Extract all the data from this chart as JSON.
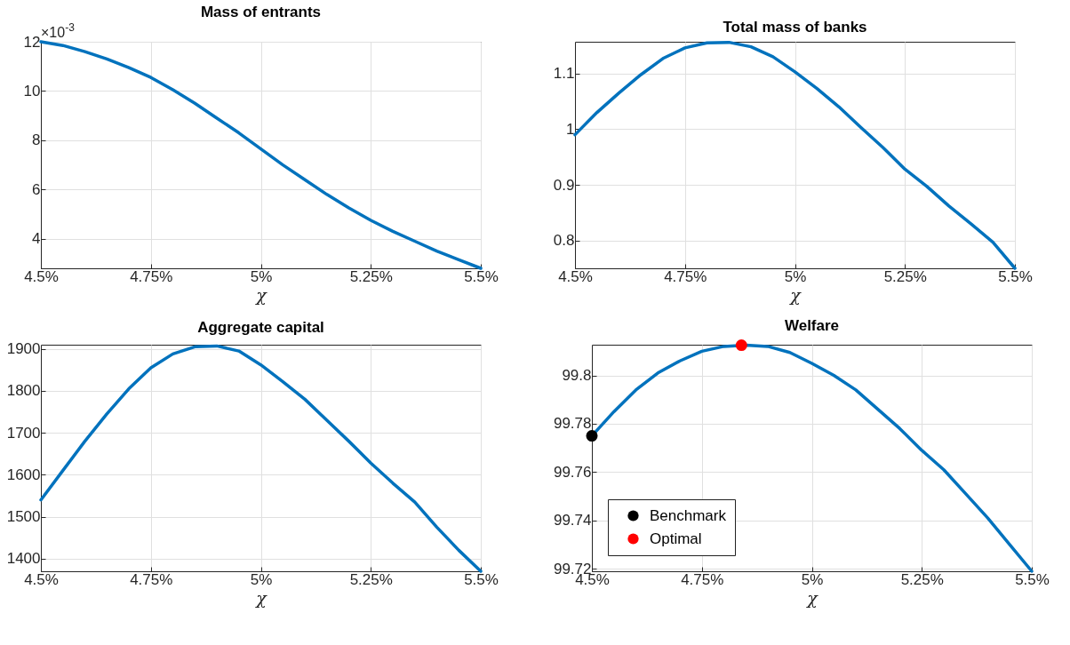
{
  "chart_data": [
    {
      "type": "line",
      "title": "Mass of entrants",
      "xlabel": "χ",
      "annotations": [
        "×10$^{-3}$"
      ],
      "grid": true,
      "marker": "none",
      "x": [
        4.5,
        4.55,
        4.6,
        4.65,
        4.7,
        4.75,
        4.8,
        4.85,
        4.9,
        4.95,
        5.0,
        5.05,
        5.1,
        5.15,
        5.2,
        5.25,
        5.3,
        5.35,
        5.4,
        5.45,
        5.5
      ],
      "series": [
        {
          "color": "#0072bd",
          "values": [
            12.0,
            11.85,
            11.6,
            11.3,
            10.95,
            10.55,
            10.05,
            9.5,
            8.9,
            8.3,
            7.65,
            7.0,
            6.4,
            5.8,
            5.25,
            4.75,
            4.3,
            3.9,
            3.5,
            3.15,
            2.8
          ]
        }
      ],
      "xlim": [
        4.5,
        5.5
      ],
      "xticks": [
        {
          "value": 4.5,
          "label": "4.5%"
        },
        {
          "value": 4.75,
          "label": "4.75%"
        },
        {
          "value": 5,
          "label": "5%"
        },
        {
          "value": 5.25,
          "label": "5.25%"
        },
        {
          "value": 5.5,
          "label": "5.5%"
        }
      ],
      "ylim": [
        2.8,
        12
      ],
      "yticks": [
        4,
        6,
        8,
        10,
        12
      ]
    },
    {
      "type": "line",
      "title": "Total mass of banks",
      "xlabel": "χ",
      "grid": true,
      "marker": "none",
      "x": [
        4.5,
        4.55,
        4.6,
        4.65,
        4.7,
        4.75,
        4.8,
        4.85,
        4.9,
        4.95,
        5.0,
        5.05,
        5.1,
        5.15,
        5.2,
        5.25,
        5.3,
        5.35,
        5.4,
        5.45,
        5.5
      ],
      "series": [
        {
          "color": "#0072bd",
          "values": [
            0.99,
            1.03,
            1.065,
            1.098,
            1.127,
            1.146,
            1.155,
            1.156,
            1.148,
            1.13,
            1.103,
            1.073,
            1.04,
            1.003,
            0.967,
            0.928,
            0.897,
            0.862,
            0.83,
            0.797,
            0.75
          ]
        }
      ],
      "xlim": [
        4.5,
        5.5
      ],
      "xticks": [
        {
          "value": 4.5,
          "label": "4.5%"
        },
        {
          "value": 4.75,
          "label": "4.75%"
        },
        {
          "value": 5,
          "label": "5%"
        },
        {
          "value": 5.25,
          "label": "5.25%"
        },
        {
          "value": 5.5,
          "label": "5.5%"
        }
      ],
      "ylim": [
        0.75,
        1.157
      ],
      "yticks": [
        0.8,
        0.9,
        1,
        1.1
      ]
    },
    {
      "type": "line",
      "title": "Aggregate capital",
      "xlabel": "χ",
      "grid": true,
      "marker": "none",
      "x": [
        4.5,
        4.55,
        4.6,
        4.65,
        4.7,
        4.75,
        4.8,
        4.85,
        4.9,
        4.95,
        5.0,
        5.05,
        5.1,
        5.15,
        5.2,
        5.25,
        5.3,
        5.35,
        5.4,
        5.45,
        5.5
      ],
      "series": [
        {
          "color": "#0072bd",
          "values": [
            1540,
            1610,
            1680,
            1745,
            1805,
            1855,
            1888,
            1905,
            1907,
            1895,
            1862,
            1822,
            1780,
            1730,
            1680,
            1628,
            1580,
            1535,
            1475,
            1420,
            1370
          ]
        }
      ],
      "xlim": [
        4.5,
        5.5
      ],
      "xticks": [
        {
          "value": 4.5,
          "label": "4.5%"
        },
        {
          "value": 4.75,
          "label": "4.75%"
        },
        {
          "value": 5,
          "label": "5%"
        },
        {
          "value": 5.25,
          "label": "5.25%"
        },
        {
          "value": 5.5,
          "label": "5.5%"
        }
      ],
      "ylim": [
        1370,
        1910
      ],
      "yticks": [
        1400,
        1500,
        1600,
        1700,
        1800,
        1900
      ]
    },
    {
      "type": "line",
      "title": "Welfare",
      "xlabel": "χ",
      "grid": true,
      "marker": "none",
      "legend": "bottom left",
      "x": [
        4.5,
        4.55,
        4.6,
        4.65,
        4.7,
        4.75,
        4.8,
        4.85,
        4.9,
        4.95,
        5.0,
        5.05,
        5.1,
        5.15,
        5.2,
        5.25,
        5.3,
        5.35,
        5.4,
        5.45,
        5.5
      ],
      "series": [
        {
          "color": "#0072bd",
          "values": [
            99.775,
            99.785,
            99.794,
            99.801,
            99.806,
            99.81,
            99.812,
            99.8125,
            99.812,
            99.8095,
            99.805,
            99.8,
            99.794,
            99.786,
            99.778,
            99.769,
            99.761,
            99.751,
            99.741,
            99.73,
            99.719
          ]
        },
        {
          "type": "scatter",
          "name": "Benchmark",
          "color": "#000000",
          "marker": "circle",
          "x": [
            4.5
          ],
          "values": [
            99.775
          ]
        },
        {
          "type": "scatter",
          "name": "Optimal",
          "color": "#ff0000",
          "marker": "circle",
          "x": [
            4.84
          ],
          "values": [
            99.8125
          ]
        }
      ],
      "xlim": [
        4.5,
        5.5
      ],
      "xticks": [
        {
          "value": 4.5,
          "label": "4.5%"
        },
        {
          "value": 4.75,
          "label": "4.75%"
        },
        {
          "value": 5,
          "label": "5%"
        },
        {
          "value": 5.25,
          "label": "5.25%"
        },
        {
          "value": 5.5,
          "label": "5.5%"
        }
      ],
      "ylim": [
        99.719,
        99.8127
      ],
      "yticks": [
        99.72,
        99.74,
        99.76,
        99.78,
        99.8
      ]
    }
  ]
}
